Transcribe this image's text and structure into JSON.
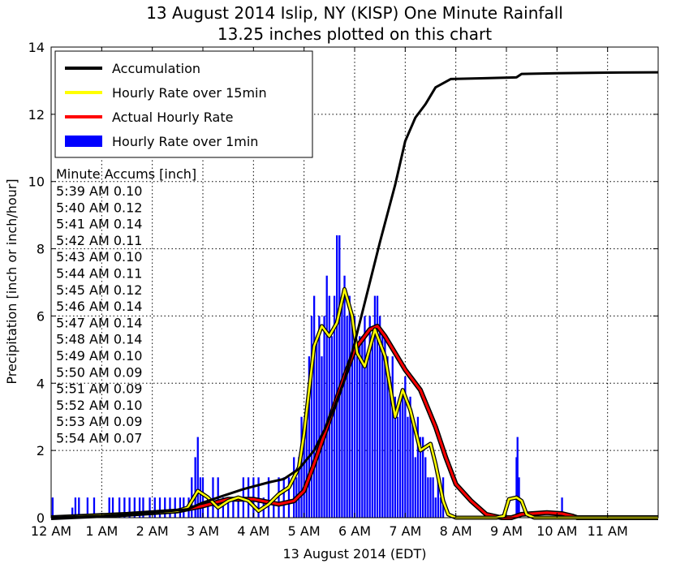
{
  "chart_data": {
    "type": "line",
    "title": "13 August 2014 Islip, NY (KISP) One Minute Rainfall",
    "subtitle": "13.25 inches plotted on this chart",
    "xlabel": "13 August 2014 (EDT)",
    "ylabel": "Precipitation [inch or inch/hour]",
    "xlim": [
      0,
      12
    ],
    "ylim": [
      0,
      14
    ],
    "x_unit": "hours after midnight",
    "x_tick_labels": [
      "12 AM",
      "1 AM",
      "2 AM",
      "3 AM",
      "4 AM",
      "5 AM",
      "6 AM",
      "7 AM",
      "8 AM",
      "9 AM",
      "10 AM",
      "11 AM"
    ],
    "y_ticks": [
      0,
      2,
      4,
      6,
      8,
      10,
      12,
      14
    ],
    "grid": true,
    "legend_position": "top-left",
    "series": [
      {
        "name": "Accumulation",
        "kind": "line",
        "color": "#000000",
        "x": [
          0.0,
          1.0,
          2.0,
          2.7,
          3.0,
          3.4,
          3.8,
          4.3,
          4.6,
          4.9,
          5.2,
          5.4,
          5.6,
          5.8,
          6.0,
          6.2,
          6.5,
          6.8,
          7.0,
          7.2,
          7.4,
          7.6,
          7.9,
          8.5,
          9.2,
          9.3,
          10.0,
          11.0,
          12.0
        ],
        "y": [
          0.0,
          0.05,
          0.15,
          0.25,
          0.45,
          0.65,
          0.85,
          1.05,
          1.15,
          1.45,
          2.0,
          2.6,
          3.3,
          4.1,
          5.2,
          6.4,
          8.2,
          9.9,
          11.2,
          11.9,
          12.3,
          12.8,
          13.05,
          13.07,
          13.1,
          13.2,
          13.22,
          13.24,
          13.25
        ]
      },
      {
        "name": "Hourly Rate over 15min",
        "kind": "line",
        "color": "#ffff00",
        "x": [
          0.0,
          1.5,
          2.5,
          2.7,
          2.9,
          3.1,
          3.3,
          3.5,
          3.7,
          3.9,
          4.1,
          4.3,
          4.5,
          4.7,
          4.9,
          5.0,
          5.1,
          5.2,
          5.35,
          5.5,
          5.65,
          5.8,
          5.95,
          6.05,
          6.2,
          6.4,
          6.6,
          6.8,
          6.95,
          7.1,
          7.3,
          7.5,
          7.6,
          7.75,
          7.85,
          8.0,
          8.2,
          8.4,
          8.6,
          8.8,
          8.95,
          9.05,
          9.2,
          9.3,
          9.4,
          9.55,
          9.7,
          12.0
        ],
        "y": [
          0.0,
          0.1,
          0.2,
          0.3,
          0.8,
          0.6,
          0.3,
          0.5,
          0.6,
          0.5,
          0.2,
          0.4,
          0.7,
          0.9,
          1.5,
          2.5,
          3.8,
          5.1,
          5.7,
          5.4,
          5.8,
          6.8,
          6.0,
          4.9,
          4.5,
          5.6,
          4.8,
          3.0,
          3.8,
          3.2,
          2.0,
          2.2,
          1.6,
          0.5,
          0.1,
          0.0,
          0.0,
          0.0,
          0.0,
          0.0,
          0.05,
          0.55,
          0.6,
          0.5,
          0.1,
          0.0,
          0.0,
          0.0
        ]
      },
      {
        "name": "Actual Hourly Rate",
        "kind": "line",
        "color": "#ff0000",
        "x": [
          0.0,
          1.5,
          2.5,
          3.0,
          3.5,
          4.0,
          4.5,
          4.8,
          5.0,
          5.2,
          5.5,
          5.8,
          6.0,
          6.3,
          6.45,
          6.6,
          6.8,
          7.0,
          7.3,
          7.6,
          7.8,
          8.0,
          8.3,
          8.6,
          8.9,
          9.1,
          9.3,
          9.8,
          10.1,
          10.3,
          10.4,
          12.0
        ],
        "y": [
          0.0,
          0.1,
          0.2,
          0.35,
          0.55,
          0.55,
          0.4,
          0.5,
          0.8,
          1.6,
          2.9,
          4.2,
          5.0,
          5.6,
          5.7,
          5.4,
          4.9,
          4.4,
          3.8,
          2.7,
          1.8,
          1.0,
          0.5,
          0.1,
          0.0,
          0.0,
          0.1,
          0.15,
          0.12,
          0.05,
          0.0,
          0.0
        ]
      },
      {
        "name": "Hourly Rate over 1min",
        "kind": "bar",
        "color": "#0000ff",
        "x": [
          0.03,
          0.42,
          0.48,
          0.55,
          0.72,
          0.85,
          1.15,
          1.22,
          1.35,
          1.45,
          1.55,
          1.65,
          1.75,
          1.82,
          1.95,
          2.05,
          2.15,
          2.25,
          2.35,
          2.45,
          2.55,
          2.62,
          2.72,
          2.78,
          2.85,
          2.9,
          2.95,
          3.0,
          3.1,
          3.2,
          3.3,
          3.4,
          3.5,
          3.6,
          3.7,
          3.8,
          3.9,
          4.0,
          4.1,
          4.2,
          4.3,
          4.4,
          4.5,
          4.6,
          4.7,
          4.8,
          4.85,
          4.9,
          4.95,
          5.0,
          5.05,
          5.1,
          5.15,
          5.2,
          5.25,
          5.3,
          5.35,
          5.4,
          5.45,
          5.5,
          5.55,
          5.6,
          5.65,
          5.7,
          5.75,
          5.8,
          5.85,
          5.9,
          5.95,
          6.0,
          6.05,
          6.1,
          6.15,
          6.2,
          6.25,
          6.3,
          6.35,
          6.4,
          6.45,
          6.5,
          6.55,
          6.6,
          6.65,
          6.7,
          6.75,
          6.8,
          6.85,
          6.9,
          6.95,
          7.0,
          7.05,
          7.1,
          7.15,
          7.2,
          7.25,
          7.3,
          7.35,
          7.4,
          7.45,
          7.5,
          7.55,
          7.6,
          7.65,
          7.7,
          7.75,
          9.2,
          9.22,
          9.25,
          10.1
        ],
        "y": [
          0.6,
          0.3,
          0.6,
          0.6,
          0.6,
          0.6,
          0.6,
          0.6,
          0.6,
          0.6,
          0.6,
          0.6,
          0.6,
          0.6,
          0.6,
          0.6,
          0.6,
          0.6,
          0.6,
          0.6,
          0.6,
          0.6,
          0.6,
          1.2,
          1.8,
          2.4,
          1.2,
          1.2,
          0.6,
          1.2,
          1.2,
          0.6,
          0.6,
          0.6,
          0.6,
          1.2,
          1.2,
          1.2,
          1.2,
          0.6,
          1.2,
          0.6,
          1.2,
          1.2,
          1.2,
          1.8,
          1.2,
          1.8,
          3.0,
          2.4,
          3.0,
          4.8,
          6.0,
          6.6,
          5.4,
          6.0,
          4.8,
          6.0,
          7.2,
          6.6,
          5.4,
          6.6,
          8.4,
          8.4,
          6.6,
          7.2,
          6.0,
          6.6,
          6.0,
          6.0,
          4.8,
          5.4,
          5.4,
          6.0,
          4.8,
          6.0,
          5.4,
          6.6,
          6.6,
          6.0,
          5.4,
          5.4,
          4.8,
          4.2,
          4.8,
          3.6,
          3.0,
          3.6,
          3.6,
          4.2,
          3.0,
          3.6,
          3.0,
          1.8,
          3.0,
          2.4,
          2.4,
          1.8,
          1.2,
          1.2,
          1.2,
          0.6,
          1.2,
          0.6,
          1.2,
          1.8,
          2.4,
          1.2,
          0.6
        ]
      }
    ],
    "annotations": {
      "header": "Minute Accums [inch]",
      "lines": [
        "5:39 AM 0.10",
        "5:40 AM 0.12",
        "5:41 AM 0.14",
        "5:42 AM 0.11",
        "5:43 AM 0.10",
        "5:44 AM 0.11",
        "5:45 AM 0.12",
        "5:46 AM 0.14",
        "5:47 AM 0.14",
        "5:48 AM 0.14",
        "5:49 AM 0.10",
        "5:50 AM 0.09",
        "5:51 AM 0.09",
        "5:52 AM 0.10",
        "5:53 AM 0.09",
        "5:54 AM 0.07"
      ]
    }
  }
}
